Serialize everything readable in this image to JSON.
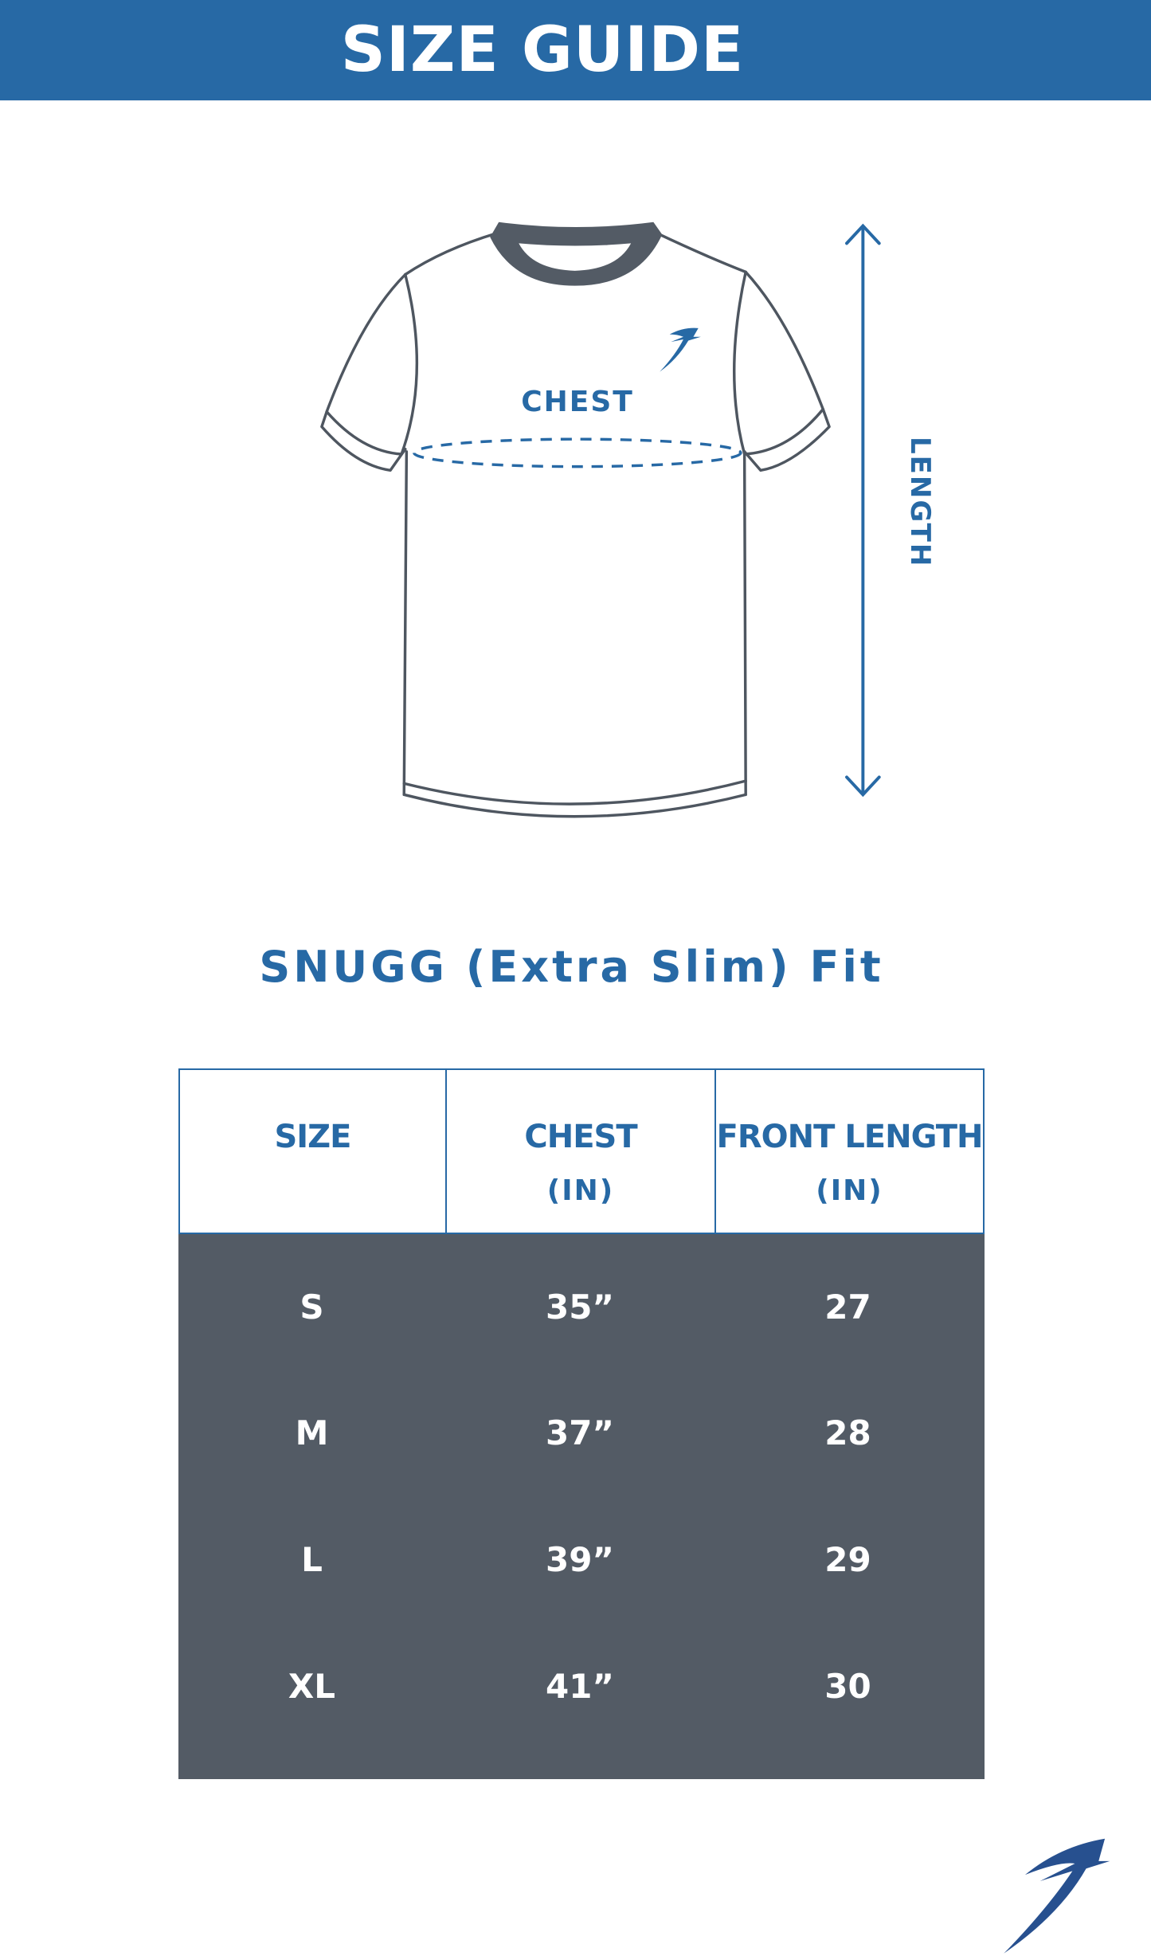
{
  "header": {
    "title": "SIZE GUIDE"
  },
  "diagram": {
    "chest_label": "CHEST",
    "length_label": "LENGTH"
  },
  "fit_title": "SNUGG (Extra Slim) Fit",
  "table": {
    "columns": [
      {
        "label": "SIZE",
        "unit": ""
      },
      {
        "label": "CHEST",
        "unit": "(IN)"
      },
      {
        "label": "FRONT LENGTH",
        "unit": "(IN)"
      }
    ],
    "rows": [
      [
        "S",
        "35”",
        "27"
      ],
      [
        "M",
        "37”",
        "28"
      ],
      [
        "L",
        "39”",
        "29"
      ],
      [
        "XL",
        "41”",
        "30"
      ]
    ]
  },
  "colors": {
    "brand_blue": "#2769a5",
    "dark_gray": "#535b65",
    "outline": "#4e5660"
  },
  "icons": {
    "logo": "brand-swoosh-logo"
  }
}
